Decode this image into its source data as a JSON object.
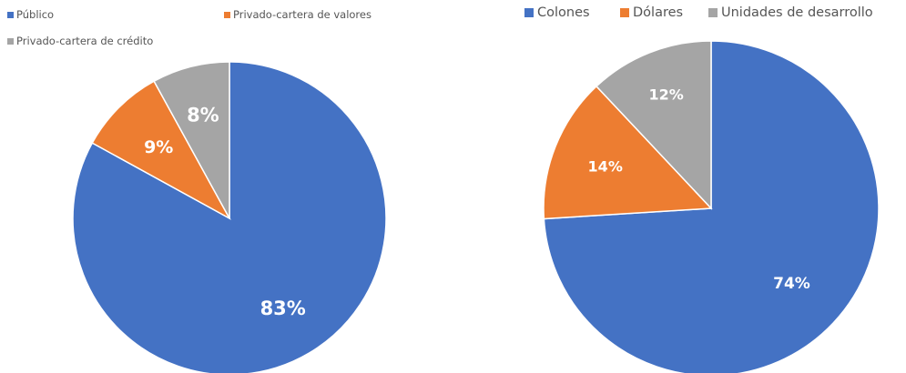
{
  "chart_data": [
    {
      "type": "pie",
      "title": "",
      "legend_position": "top",
      "slices": [
        {
          "label": "Público",
          "value": 83,
          "display": "83%",
          "color": "#4472c4"
        },
        {
          "label": "Privado-cartera de valores",
          "value": 9,
          "display": "9%",
          "color": "#ed7d31"
        },
        {
          "label": "Privado-cartera de crédito",
          "value": 8,
          "display": "8%",
          "color": "#a5a5a5"
        }
      ]
    },
    {
      "type": "pie",
      "title": "",
      "legend_position": "top",
      "slices": [
        {
          "label": "Colones",
          "value": 74,
          "display": "74%",
          "color": "#4472c4"
        },
        {
          "label": "Dólares",
          "value": 14,
          "display": "14%",
          "color": "#ed7d31"
        },
        {
          "label": "Unidades de desarrollo",
          "value": 12,
          "display": "12%",
          "color": "#a5a5a5"
        }
      ]
    }
  ]
}
